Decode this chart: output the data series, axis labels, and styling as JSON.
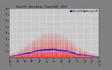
{
  "title": "Solar PV - West Array - Power(kW) - 2013",
  "legend_actual": "Actual kW",
  "legend_average": "Average kW",
  "bg_color": "#808080",
  "plot_bg_color": "#c8c8c8",
  "bar_color": "#ff0000",
  "avg_color": "#0000ff",
  "grid_color": "#ffffff",
  "text_color": "#000000",
  "ylim": [
    0,
    8
  ],
  "num_points": 525600,
  "seed": 1
}
